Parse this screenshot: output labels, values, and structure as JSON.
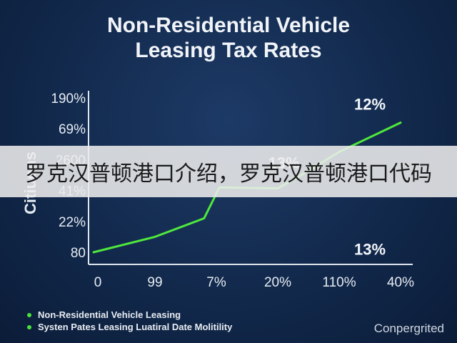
{
  "chart_data": {
    "type": "line",
    "title_lines": [
      "Non-Residential Vehicle",
      "Leasing Tax Rates"
    ],
    "ylabel": "Citiuons",
    "x_tick_labels": [
      "0",
      "99",
      "7%",
      "20%",
      "110%",
      "40%"
    ],
    "y_tick_labels": [
      "80",
      "22%",
      "41%",
      "2600",
      "69%",
      "190%"
    ],
    "series": [
      {
        "name": "Non-Residential Vehicle Leasing",
        "color": "#4fe83d",
        "points": [
          {
            "x": 0,
            "y": 0
          },
          {
            "x": 1,
            "y": 0.5
          },
          {
            "x": 1.8,
            "y": 1.1
          },
          {
            "x": 2.05,
            "y": 2.1
          },
          {
            "x": 3,
            "y": 2.07
          },
          {
            "x": 3.3,
            "y": 2.4
          },
          {
            "x": 4,
            "y": 3.25
          },
          {
            "x": 5,
            "y": 4.2
          }
        ]
      }
    ],
    "annotations": [
      {
        "text": "12%",
        "x": 4.5,
        "y": 4.8
      },
      {
        "text": "13%",
        "x": 4.5,
        "y": 0.1
      },
      {
        "text": "13%",
        "x": 3.1,
        "y": 2.9
      }
    ],
    "legend": [
      "Non-Residential Vehicle Leasing",
      "Systen Pates Leasing Luatiral Date Molitility"
    ]
  },
  "brand": "Conpergrited",
  "banner_text": "罗克汉普顿港口介绍，罗克汉普顿港口代码"
}
